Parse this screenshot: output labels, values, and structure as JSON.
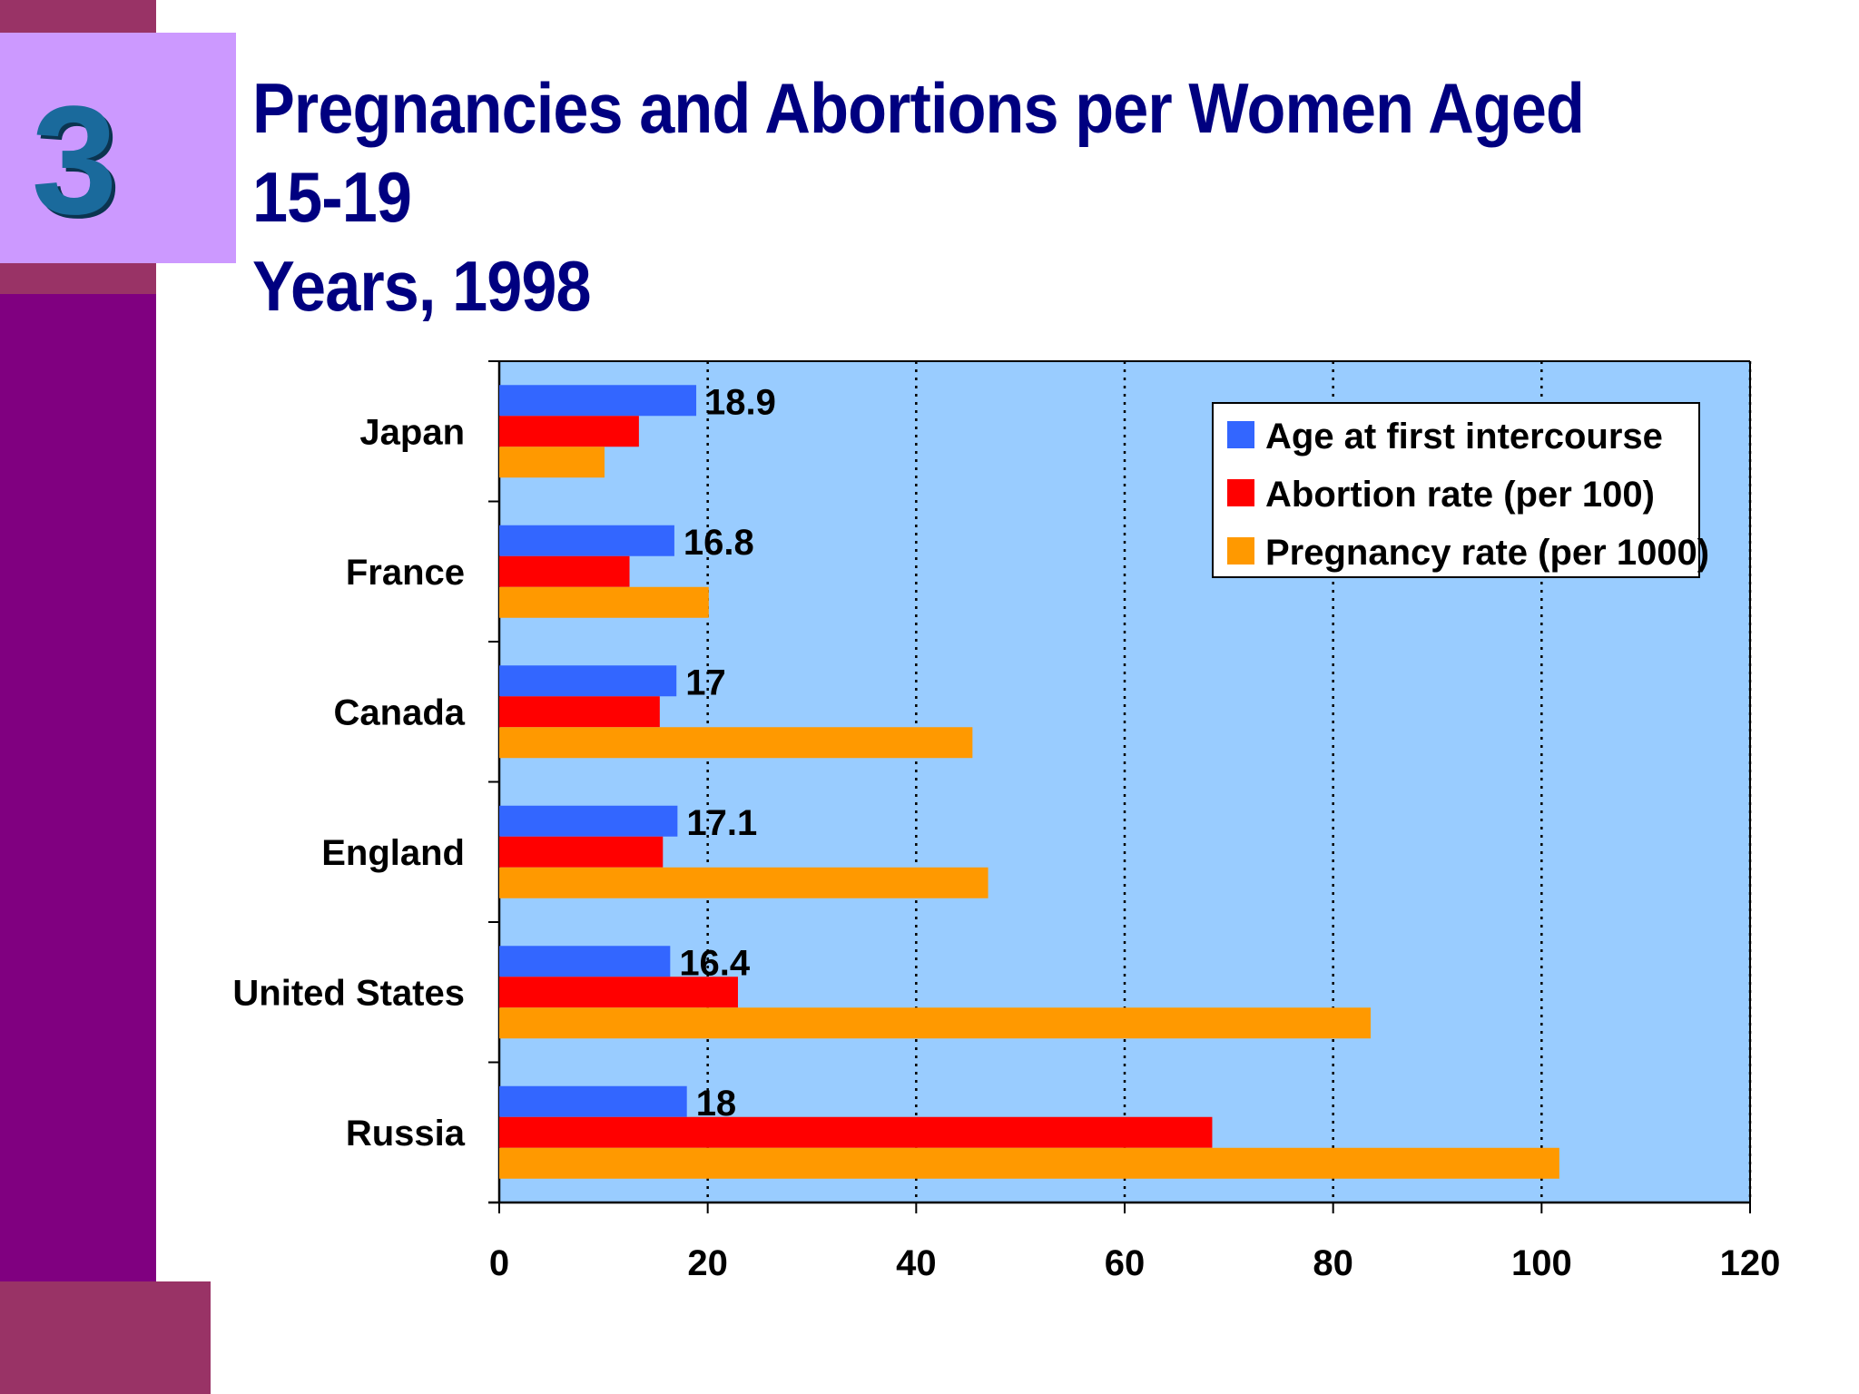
{
  "slide": {
    "number": "3",
    "title_line1": "Pregnancies and Abortions per Women Aged 15-19",
    "title_line2": "Years, 1998"
  },
  "colors": {
    "purple_stripe": "#800080",
    "maroon_accent": "#993366",
    "number_box": "#cc99ff",
    "number_text": "#1a6a9c",
    "title_text": "#000080",
    "plot_background": "#99ccff"
  },
  "chart_data": {
    "type": "bar",
    "orientation": "horizontal",
    "categories": [
      "Japan",
      "France",
      "Canada",
      "England",
      "United States",
      "Russia"
    ],
    "series": [
      {
        "name": "Age at first intercourse",
        "color": "#3366ff",
        "values": [
          18.9,
          16.8,
          17,
          17.1,
          16.4,
          18
        ],
        "data_labels": [
          "18.9",
          "16.8",
          "17",
          "17.1",
          "16.4",
          "18"
        ]
      },
      {
        "name": "Abortion rate (per 100)",
        "color": "#ff0000",
        "values": [
          13.4,
          12.5,
          15.4,
          15.7,
          22.9,
          68.4
        ]
      },
      {
        "name": "Pregnancy rate (per 1000)",
        "color": "#ff9900",
        "values": [
          10.1,
          20.1,
          45.4,
          46.9,
          83.6,
          101.7
        ]
      }
    ],
    "xlim": [
      0,
      120
    ],
    "xticks": [
      "0",
      "20",
      "40",
      "60",
      "80",
      "100",
      "120"
    ],
    "grid": "vertical dotted",
    "legend_position": "top-right"
  }
}
